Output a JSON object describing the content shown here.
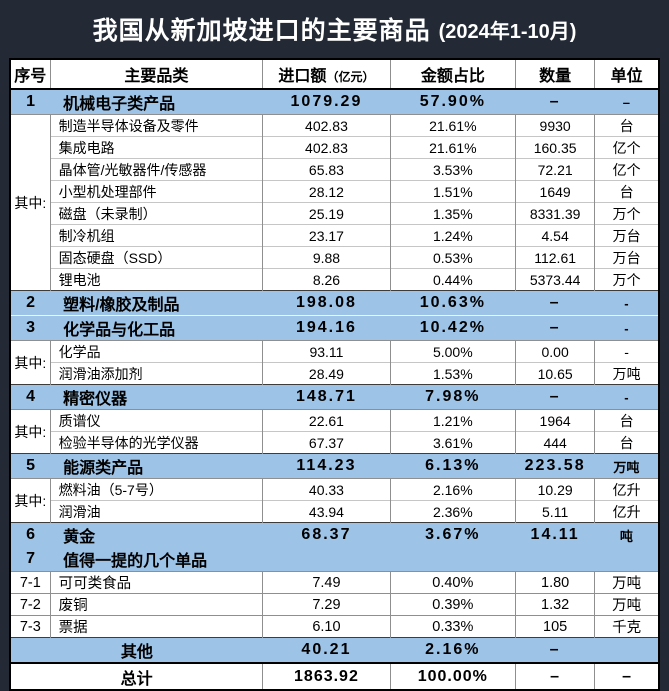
{
  "title": {
    "text": "我国从新加坡进口的主要商品",
    "period": "(2024年1-10月)"
  },
  "colors": {
    "frame_bg": "#232a35",
    "highlight_row": "#9dc3e6",
    "table_bg": "#ffffff",
    "title_text": "#ffffff",
    "body_text": "#000000"
  },
  "table": {
    "headers": {
      "no": "序号",
      "category": "主要品类",
      "value": "进口额",
      "value_unit": "（亿元）",
      "share": "金额占比",
      "quantity": "数量",
      "unit": "单位"
    },
    "rows": [
      {
        "style": "main",
        "no": "1",
        "name": "机械电子类产品",
        "value": "1079.29",
        "pct": "57.90%",
        "qty": "–",
        "unit": "–"
      },
      {
        "style": "sub",
        "group_label": "其中:",
        "group_span": 8,
        "name": "制造半导体设备及零件",
        "value": "402.83",
        "pct": "21.61%",
        "qty": "9930",
        "unit": "台"
      },
      {
        "style": "sub",
        "name": "集成电路",
        "value": "402.83",
        "pct": "21.61%",
        "qty": "160.35",
        "unit": "亿个"
      },
      {
        "style": "sub",
        "name": "晶体管/光敏器件/传感器",
        "value": "65.83",
        "pct": "3.53%",
        "qty": "72.21",
        "unit": "亿个"
      },
      {
        "style": "sub",
        "name": "小型机处理部件",
        "value": "28.12",
        "pct": "1.51%",
        "qty": "1649",
        "unit": "台"
      },
      {
        "style": "sub",
        "name": "磁盘（未录制）",
        "value": "25.19",
        "pct": "1.35%",
        "qty": "8331.39",
        "unit": "万个"
      },
      {
        "style": "sub",
        "name": "制冷机组",
        "value": "23.17",
        "pct": "1.24%",
        "qty": "4.54",
        "unit": "万台"
      },
      {
        "style": "sub",
        "name": "固态硬盘（SSD）",
        "value": "9.88",
        "pct": "0.53%",
        "qty": "112.61",
        "unit": "万台"
      },
      {
        "style": "sub",
        "name": "锂电池",
        "value": "8.26",
        "pct": "0.44%",
        "qty": "5373.44",
        "unit": "万个"
      },
      {
        "style": "main",
        "no": "2",
        "name": "塑料/橡胶及制品",
        "value": "198.08",
        "pct": "10.63%",
        "qty": "–",
        "unit": "-"
      },
      {
        "style": "main",
        "no": "3",
        "name": "化学品与化工品",
        "value": "194.16",
        "pct": "10.42%",
        "qty": "–",
        "unit": "-"
      },
      {
        "style": "sub",
        "group_label": "其中:",
        "group_span": 2,
        "name": "化学品",
        "value": "93.11",
        "pct": "5.00%",
        "qty": "0.00",
        "unit": "-"
      },
      {
        "style": "sub",
        "name": "润滑油添加剂",
        "value": "28.49",
        "pct": "1.53%",
        "qty": "10.65",
        "unit": "万吨"
      },
      {
        "style": "main",
        "no": "4",
        "name": "精密仪器",
        "value": "148.71",
        "pct": "7.98%",
        "qty": "–",
        "unit": "-"
      },
      {
        "style": "sub",
        "group_label": "其中:",
        "group_span": 2,
        "name": "质谱仪",
        "value": "22.61",
        "pct": "1.21%",
        "qty": "1964",
        "unit": "台"
      },
      {
        "style": "sub",
        "name": "检验半导体的光学仪器",
        "value": "67.37",
        "pct": "3.61%",
        "qty": "444",
        "unit": "台"
      },
      {
        "style": "main",
        "no": "5",
        "name": "能源类产品",
        "value": "114.23",
        "pct": "6.13%",
        "qty": "223.58",
        "unit": "万吨"
      },
      {
        "style": "sub",
        "group_label": "其中:",
        "group_span": 2,
        "name": "燃料油（5-7号）",
        "value": "40.33",
        "pct": "2.16%",
        "qty": "10.29",
        "unit": "亿升"
      },
      {
        "style": "sub",
        "name": "润滑油",
        "value": "43.94",
        "pct": "2.36%",
        "qty": "5.11",
        "unit": "亿升"
      },
      {
        "style": "main",
        "no": "6",
        "name": "黄金",
        "value": "68.37",
        "pct": "3.67%",
        "qty": "14.11",
        "unit": "吨"
      },
      {
        "style": "main",
        "no": "7",
        "name": "值得一提的几个单品",
        "value": "",
        "pct": "",
        "qty": "",
        "unit": "",
        "joined": true
      },
      {
        "style": "item",
        "no": "7-1",
        "name": "可可类食品",
        "value": "7.49",
        "pct": "0.40%",
        "qty": "1.80",
        "unit": "万吨"
      },
      {
        "style": "item",
        "no": "7-2",
        "name": "废铜",
        "value": "7.29",
        "pct": "0.39%",
        "qty": "1.32",
        "unit": "万吨"
      },
      {
        "style": "item",
        "no": "7-3",
        "name": "票据",
        "value": "6.10",
        "pct": "0.33%",
        "qty": "105",
        "unit": "千克"
      },
      {
        "style": "other",
        "name": "其他",
        "value": "40.21",
        "pct": "2.16%",
        "qty": "–",
        "unit": "",
        "merged": true
      },
      {
        "style": "total",
        "name": "总计",
        "value": "1863.92",
        "pct": "100.00%",
        "qty": "–",
        "unit": "–",
        "merged": true
      }
    ]
  },
  "chart_data": {
    "type": "table",
    "title": "我国从新加坡进口的主要商品 (2024年1-10月)",
    "columns": [
      "序号",
      "主要品类",
      "进口额（亿元）",
      "金额占比",
      "数量",
      "单位"
    ],
    "rows": [
      [
        "1",
        "机械电子类产品",
        "1079.29",
        "57.90%",
        "–",
        "–"
      ],
      [
        "其中:",
        "制造半导体设备及零件",
        "402.83",
        "21.61%",
        "9930",
        "台"
      ],
      [
        "其中:",
        "集成电路",
        "402.83",
        "21.61%",
        "160.35",
        "亿个"
      ],
      [
        "其中:",
        "晶体管/光敏器件/传感器",
        "65.83",
        "3.53%",
        "72.21",
        "亿个"
      ],
      [
        "其中:",
        "小型机处理部件",
        "28.12",
        "1.51%",
        "1649",
        "台"
      ],
      [
        "其中:",
        "磁盘（未录制）",
        "25.19",
        "1.35%",
        "8331.39",
        "万个"
      ],
      [
        "其中:",
        "制冷机组",
        "23.17",
        "1.24%",
        "4.54",
        "万台"
      ],
      [
        "其中:",
        "固态硬盘（SSD）",
        "9.88",
        "0.53%",
        "112.61",
        "万台"
      ],
      [
        "其中:",
        "锂电池",
        "8.26",
        "0.44%",
        "5373.44",
        "万个"
      ],
      [
        "2",
        "塑料/橡胶及制品",
        "198.08",
        "10.63%",
        "–",
        "-"
      ],
      [
        "3",
        "化学品与化工品",
        "194.16",
        "10.42%",
        "–",
        "-"
      ],
      [
        "其中:",
        "化学品",
        "93.11",
        "5.00%",
        "0.00",
        "-"
      ],
      [
        "其中:",
        "润滑油添加剂",
        "28.49",
        "1.53%",
        "10.65",
        "万吨"
      ],
      [
        "4",
        "精密仪器",
        "148.71",
        "7.98%",
        "–",
        "-"
      ],
      [
        "其中:",
        "质谱仪",
        "22.61",
        "1.21%",
        "1964",
        "台"
      ],
      [
        "其中:",
        "检验半导体的光学仪器",
        "67.37",
        "3.61%",
        "444",
        "台"
      ],
      [
        "5",
        "能源类产品",
        "114.23",
        "6.13%",
        "223.58",
        "万吨"
      ],
      [
        "其中:",
        "燃料油（5-7号）",
        "40.33",
        "2.16%",
        "10.29",
        "亿升"
      ],
      [
        "其中:",
        "润滑油",
        "43.94",
        "2.36%",
        "5.11",
        "亿升"
      ],
      [
        "6",
        "黄金",
        "68.37",
        "3.67%",
        "14.11",
        "吨"
      ],
      [
        "7",
        "值得一提的几个单品",
        "",
        "",
        "",
        ""
      ],
      [
        "7-1",
        "可可类食品",
        "7.49",
        "0.40%",
        "1.80",
        "万吨"
      ],
      [
        "7-2",
        "废铜",
        "7.29",
        "0.39%",
        "1.32",
        "万吨"
      ],
      [
        "7-3",
        "票据",
        "6.10",
        "0.33%",
        "105",
        "千克"
      ],
      [
        "",
        "其他",
        "40.21",
        "2.16%",
        "–",
        ""
      ],
      [
        "",
        "总计",
        "1863.92",
        "100.00%",
        "–",
        "–"
      ]
    ]
  }
}
